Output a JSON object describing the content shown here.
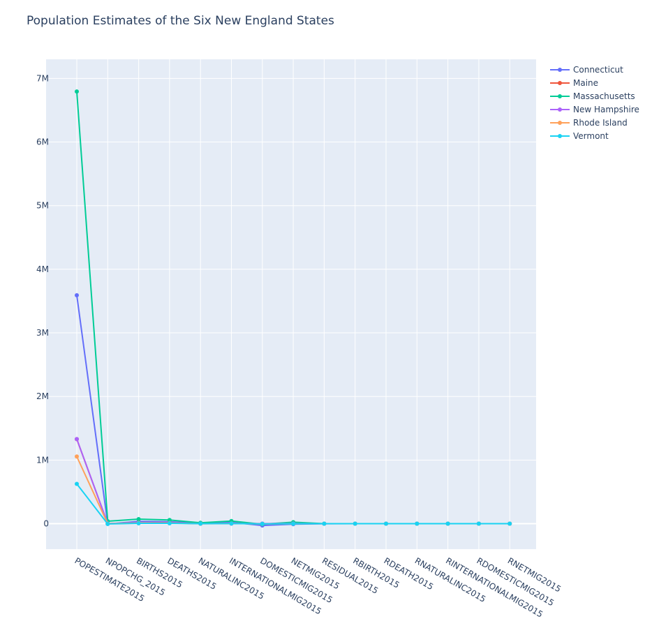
{
  "chart_data": {
    "type": "line",
    "title": "Population Estimates of the Six New England States",
    "xlabel": "",
    "ylabel": "",
    "ylim": [
      -400000,
      7300000
    ],
    "yticks": [
      {
        "value": 0,
        "label": "0"
      },
      {
        "value": 1000000,
        "label": "1M"
      },
      {
        "value": 2000000,
        "label": "2M"
      },
      {
        "value": 3000000,
        "label": "3M"
      },
      {
        "value": 4000000,
        "label": "4M"
      },
      {
        "value": 5000000,
        "label": "5M"
      },
      {
        "value": 6000000,
        "label": "6M"
      },
      {
        "value": 7000000,
        "label": "7M"
      }
    ],
    "categories": [
      "POPESTIMATE2015",
      "NPOPCHG_2015",
      "BIRTHS2015",
      "DEATHS2015",
      "NATURALINC2015",
      "INTERNATIONALMIG2015",
      "DOMESTICMIG2015",
      "NETMIG2015",
      "RESIDUAL2015",
      "RBIRTH2015",
      "RDEATH2015",
      "RNATURALINC2015",
      "RINTERNATIONALMIG2015",
      "RDOMESTICMIG2015",
      "RNETMIG2015"
    ],
    "legend_position": "top-right",
    "series": [
      {
        "name": "Connecticut",
        "color": "#636efa",
        "values": [
          3590886,
          -3876,
          35900,
          31200,
          4700,
          20800,
          -28800,
          -8000,
          -600,
          10,
          8.7,
          1.3,
          5.8,
          -8,
          -2.2
        ]
      },
      {
        "name": "Maine",
        "color": "#ef553b",
        "values": [
          1329328,
          700,
          12600,
          14000,
          -1400,
          1800,
          400,
          2200,
          -50,
          9.5,
          10.6,
          -1.1,
          1.4,
          0.3,
          1.7
        ]
      },
      {
        "name": "Massachusetts",
        "color": "#00cc96",
        "values": [
          6794422,
          39000,
          72000,
          58000,
          14000,
          42000,
          -8000,
          24000,
          1000,
          10.6,
          8.6,
          2,
          6.2,
          -1.2,
          5
        ]
      },
      {
        "name": "New Hampshire",
        "color": "#ab63fa",
        "values": [
          1330608,
          3400,
          12300,
          11800,
          500,
          2300,
          1200,
          3500,
          100,
          9.3,
          8.9,
          0.4,
          1.7,
          0.9,
          2.6
        ]
      },
      {
        "name": "Rhode Island",
        "color": "#ffa15a",
        "values": [
          1056298,
          400,
          10800,
          9800,
          1000,
          3200,
          -3700,
          -500,
          -100,
          10.2,
          9.3,
          0.9,
          3,
          -3.5,
          -0.5
        ]
      },
      {
        "name": "Vermont",
        "color": "#19d3f3",
        "values": [
          626042,
          -3600,
          6000,
          5800,
          200,
          1200,
          -2900,
          -1700,
          -100,
          9.6,
          9.3,
          0.3,
          1.9,
          -4.6,
          -2.7
        ]
      }
    ]
  }
}
